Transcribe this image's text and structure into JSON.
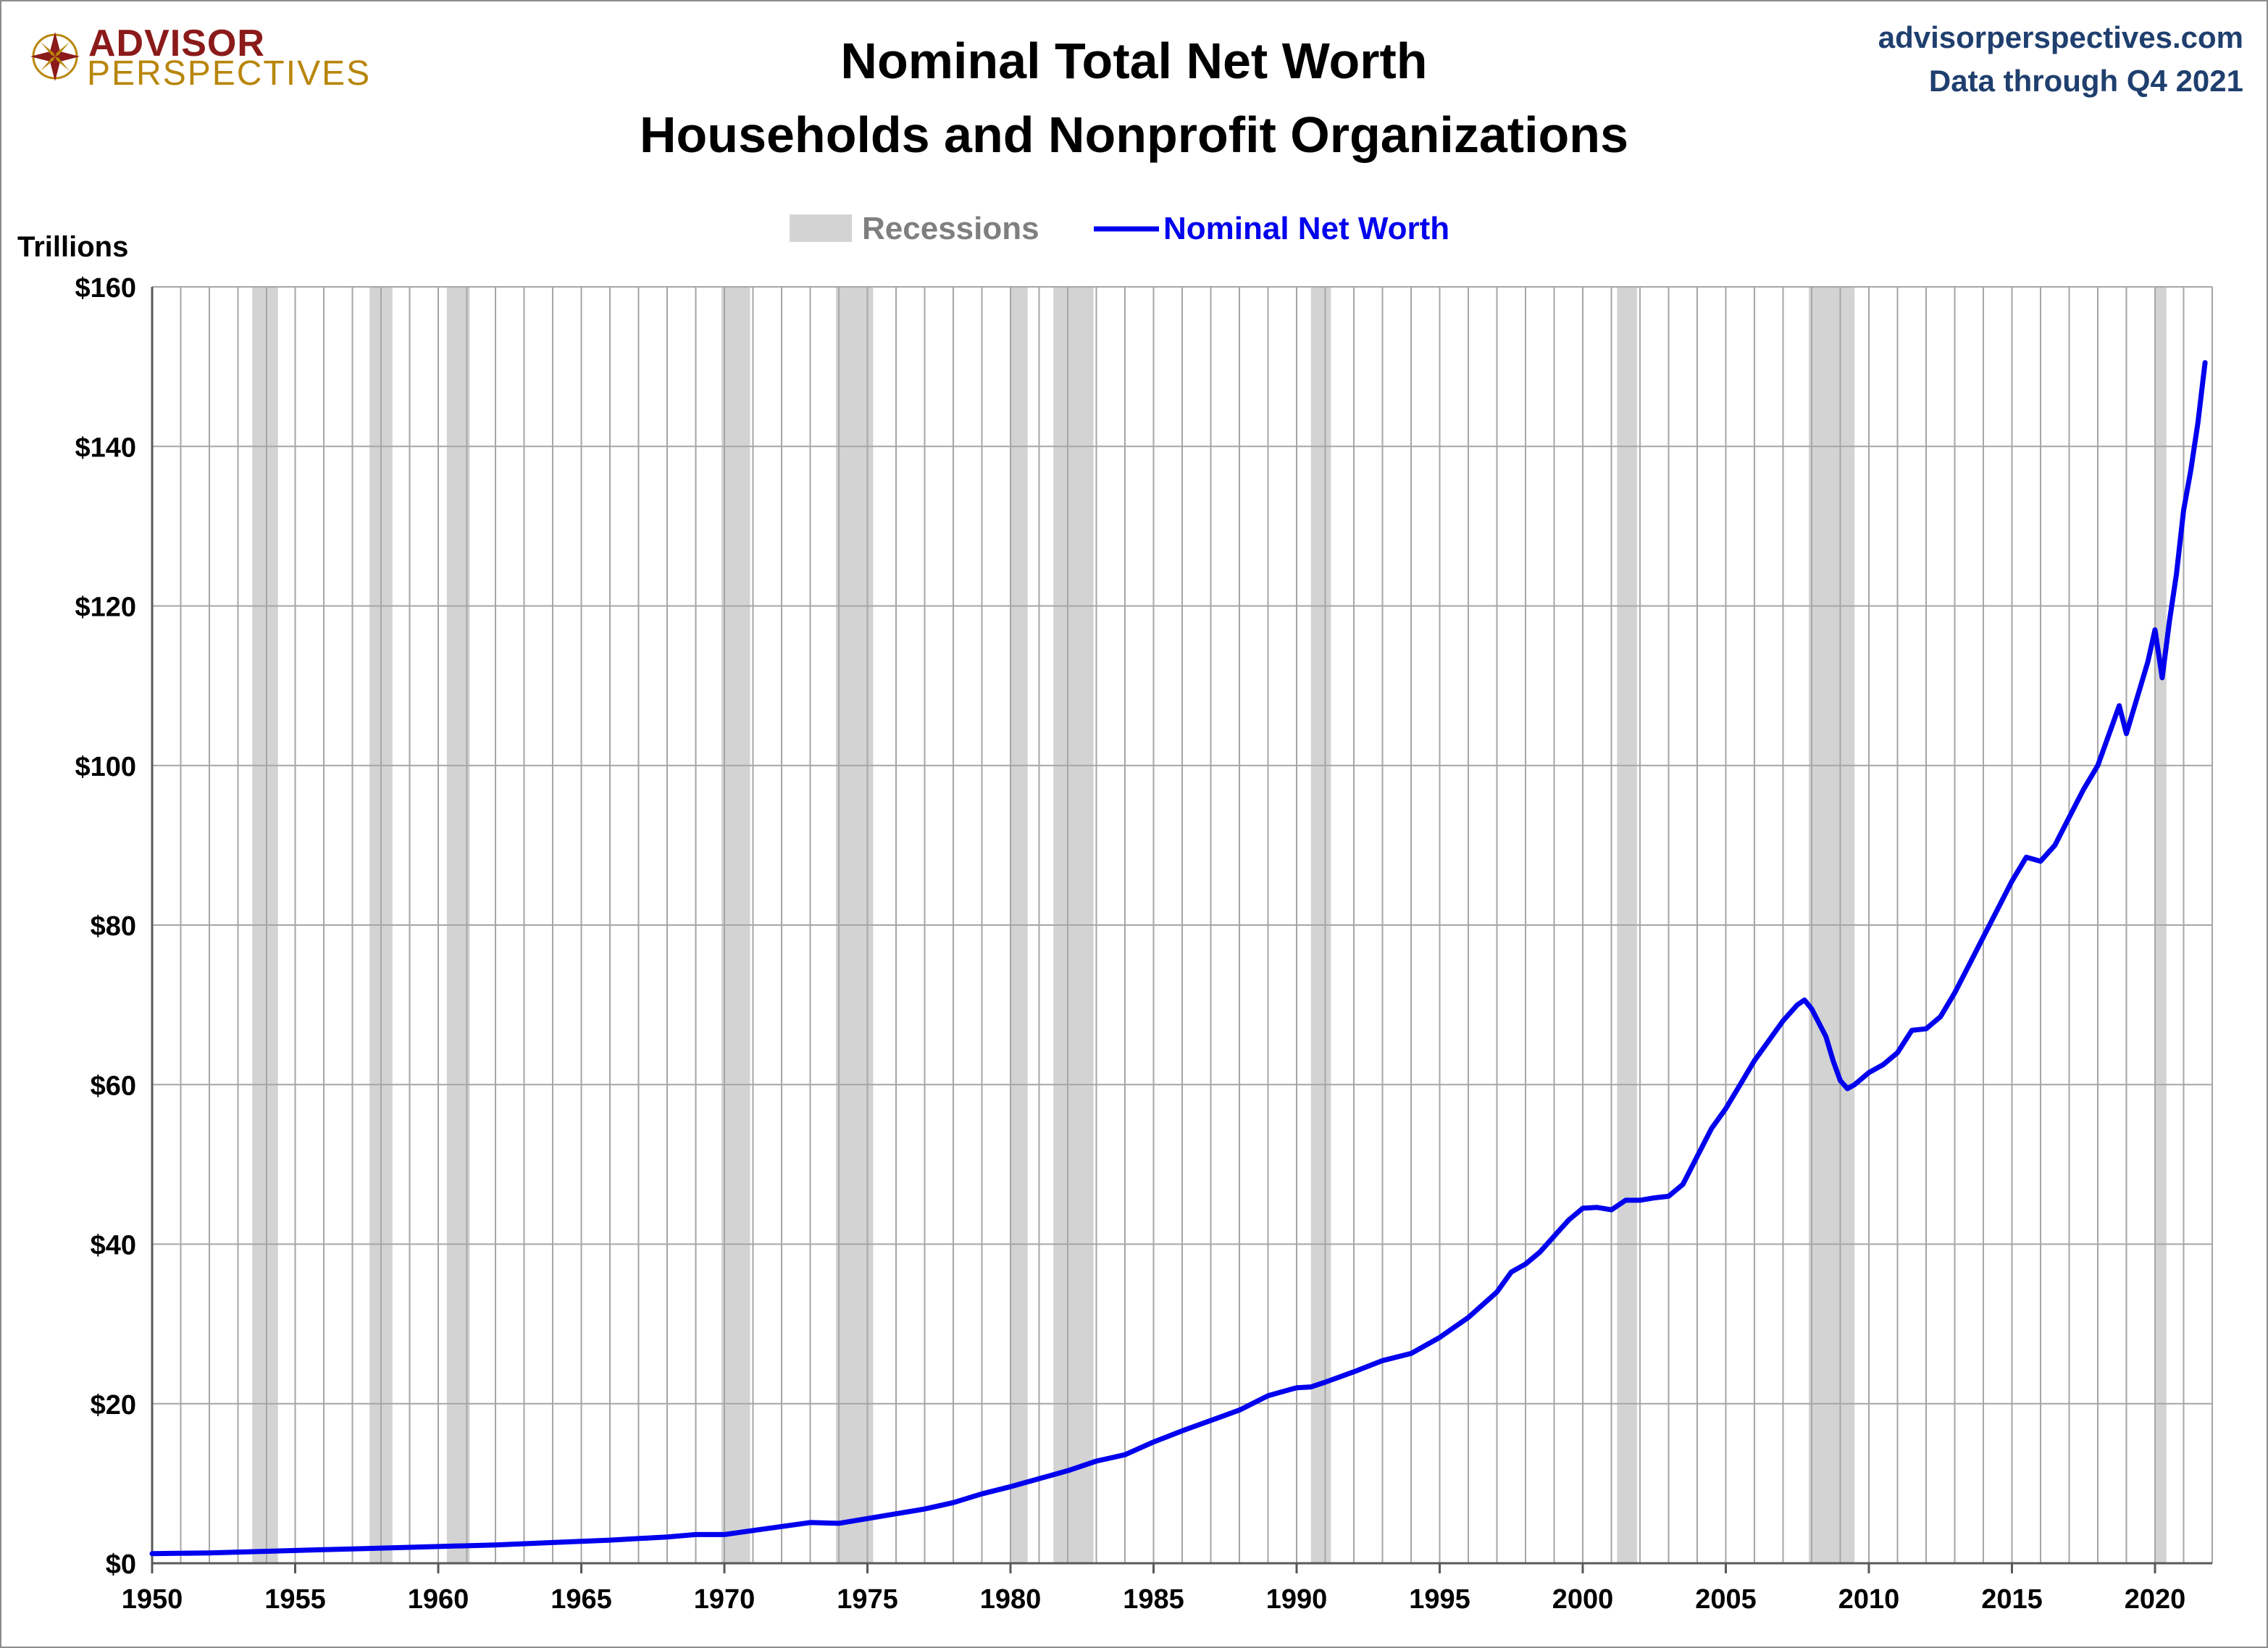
{
  "logo": {
    "top": "ADVISOR",
    "bottom": "PERSPECTIVES"
  },
  "source": {
    "site": "advisorperspectives.com",
    "note": "Data through Q4 2021"
  },
  "colors": {
    "series": "#0000ee",
    "recession": "#d3d3d3",
    "grid": "#a6a6a6",
    "logo_red": "#8b1a1a",
    "logo_gold": "#b8860b",
    "source": "#1f3f6e"
  },
  "chart_data": {
    "type": "line",
    "title": "Nominal Total Net Worth",
    "subtitle": "Households and Nonprofit Organizations",
    "ylabel": "Trillions",
    "ylim": [
      0,
      160
    ],
    "xlim": [
      1950,
      2022
    ],
    "yticks": [
      0,
      20,
      40,
      60,
      80,
      100,
      120,
      140,
      160
    ],
    "ytick_labels": [
      "$0",
      "$20",
      "$40",
      "$60",
      "$80",
      "$100",
      "$120",
      "$140",
      "$160"
    ],
    "xticks": [
      1950,
      1955,
      1960,
      1965,
      1970,
      1975,
      1980,
      1985,
      1990,
      1995,
      2000,
      2005,
      2010,
      2015,
      2020
    ],
    "xtick_labels": [
      "1950",
      "1955",
      "1960",
      "1965",
      "1970",
      "1975",
      "1980",
      "1985",
      "1990",
      "1995",
      "2000",
      "2005",
      "2010",
      "2015",
      "2020"
    ],
    "grid": true,
    "legend": {
      "position": "top-center",
      "entries": [
        "Recessions",
        "Nominal Net Worth"
      ]
    },
    "recessions": [
      [
        1953.5,
        1954.4
      ],
      [
        1957.6,
        1958.4
      ],
      [
        1960.3,
        1961.1
      ],
      [
        1969.9,
        1970.9
      ],
      [
        1973.9,
        1975.2
      ],
      [
        1980.0,
        1980.6
      ],
      [
        1981.5,
        1982.9
      ],
      [
        1990.5,
        1991.2
      ],
      [
        2001.2,
        2001.9
      ],
      [
        2007.9,
        2009.5
      ],
      [
        2020.0,
        2020.4
      ]
    ],
    "series": [
      {
        "name": "Nominal Net Worth",
        "x": [
          1950,
          1952,
          1954,
          1956,
          1958,
          1960,
          1962,
          1964,
          1966,
          1968,
          1969,
          1970,
          1971,
          1972,
          1973,
          1974,
          1975,
          1976,
          1977,
          1978,
          1979,
          1980,
          1981,
          1982,
          1983,
          1984,
          1985,
          1986,
          1987,
          1988,
          1989,
          1990,
          1990.5,
          1991,
          1992,
          1993,
          1994,
          1995,
          1996,
          1997,
          1997.5,
          1998,
          1998.5,
          1999,
          1999.5,
          2000,
          2000.5,
          2001,
          2001.5,
          2002,
          2002.5,
          2003,
          2003.5,
          2004,
          2004.5,
          2005,
          2005.5,
          2006,
          2006.5,
          2007,
          2007.5,
          2007.75,
          2008,
          2008.5,
          2008.75,
          2009,
          2009.25,
          2009.5,
          2010,
          2010.5,
          2011,
          2011.5,
          2012,
          2012.5,
          2013,
          2013.5,
          2014,
          2014.5,
          2015,
          2015.5,
          2016,
          2016.5,
          2017,
          2017.5,
          2018,
          2018.5,
          2018.75,
          2019,
          2019.5,
          2019.75,
          2020,
          2020.25,
          2020.5,
          2020.75,
          2021,
          2021.25,
          2021.5,
          2021.75
        ],
        "values": [
          1.2,
          1.3,
          1.5,
          1.7,
          1.9,
          2.1,
          2.3,
          2.6,
          2.9,
          3.3,
          3.6,
          3.6,
          4.1,
          4.6,
          5.1,
          5.0,
          5.6,
          6.2,
          6.8,
          7.6,
          8.7,
          9.6,
          10.6,
          11.6,
          12.8,
          13.6,
          15.2,
          16.6,
          17.9,
          19.2,
          21.0,
          22.0,
          22.1,
          22.7,
          24.0,
          25.4,
          26.3,
          28.3,
          30.8,
          34.0,
          36.5,
          37.5,
          39.0,
          41.0,
          43.0,
          44.5,
          44.6,
          44.3,
          45.5,
          45.5,
          45.8,
          46.0,
          47.5,
          51.0,
          54.5,
          57.0,
          60.0,
          63.0,
          65.5,
          68.0,
          70.0,
          70.6,
          69.5,
          66.0,
          63.0,
          60.5,
          59.5,
          60.0,
          61.5,
          62.5,
          64.0,
          66.8,
          67.0,
          68.5,
          71.5,
          75.0,
          78.5,
          82.0,
          85.5,
          88.5,
          88.0,
          90.0,
          93.5,
          97.0,
          100.0,
          105.0,
          107.5,
          104.0,
          110.0,
          113.0,
          117.0,
          111.0,
          118.0,
          124.0,
          132.0,
          137.0,
          143.0,
          150.5
        ]
      }
    ]
  }
}
